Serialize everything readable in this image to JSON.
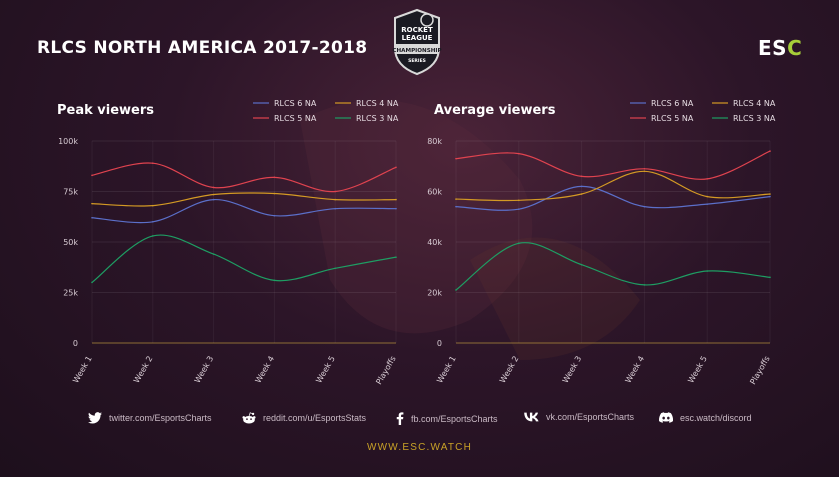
{
  "header": {
    "title": "RLCS NORTH AMERICA 2017-2018",
    "badge": {
      "line1": "ROCKET",
      "line2": "LEAGUE",
      "line3": "CHAMPIONSHIP",
      "line4": "SERIES"
    },
    "brand_main": "ES",
    "brand_accent": "C"
  },
  "footer": {
    "twitter": "twitter.com/EsportsCharts",
    "reddit": "reddit.com/u/EsportsStats",
    "facebook": "fb.com/EsportsCharts",
    "vk": "vk.com/EsportsCharts",
    "discord": "esc.watch/discord",
    "website": "WWW.ESC.WATCH"
  },
  "colors": {
    "RLCS 6 NA": "#5b6fc9",
    "RLCS 4 NA": "#d49a24",
    "RLCS 5 NA": "#e0434f",
    "RLCS 3 NA": "#1e9e63",
    "accent": "#c9a227",
    "brand_green": "#a6ce39"
  },
  "chart_data": [
    {
      "type": "line",
      "title": "Peak viewers",
      "categories": [
        "Week 1",
        "Week 2",
        "Week 3",
        "Week 4",
        "Week 5",
        "Playoffs"
      ],
      "ylim": [
        0,
        100000
      ],
      "yticks": [
        0,
        25000,
        50000,
        75000,
        100000
      ],
      "ytick_labels": [
        "0",
        "25k",
        "50k",
        "75k",
        "100k"
      ],
      "grid": true,
      "legend": "top-right",
      "series": [
        {
          "name": "RLCS 6 NA",
          "values": [
            62000,
            60000,
            71000,
            63000,
            66500,
            66500
          ]
        },
        {
          "name": "RLCS 4 NA",
          "values": [
            69000,
            68000,
            73500,
            74000,
            71000,
            71000
          ]
        },
        {
          "name": "RLCS 5 NA",
          "values": [
            83000,
            89000,
            77000,
            82000,
            75000,
            87000
          ]
        },
        {
          "name": "RLCS 3 NA",
          "values": [
            30000,
            53000,
            44000,
            31000,
            37000,
            42500
          ]
        }
      ]
    },
    {
      "type": "line",
      "title": "Average viewers",
      "categories": [
        "Week 1",
        "Week 2",
        "Week 3",
        "Week 4",
        "Week 5",
        "Playoffs"
      ],
      "ylim": [
        0,
        80000
      ],
      "yticks": [
        0,
        20000,
        40000,
        60000,
        80000
      ],
      "ytick_labels": [
        "0",
        "20k",
        "40k",
        "60k",
        "80k"
      ],
      "grid": true,
      "legend": "top-right",
      "series": [
        {
          "name": "RLCS 6 NA",
          "values": [
            54000,
            53000,
            62000,
            54000,
            55000,
            58000
          ]
        },
        {
          "name": "RLCS 4 NA",
          "values": [
            57000,
            56500,
            59000,
            68000,
            58000,
            59000
          ]
        },
        {
          "name": "RLCS 5 NA",
          "values": [
            73000,
            75000,
            66000,
            69000,
            65000,
            76000
          ]
        },
        {
          "name": "RLCS 3 NA",
          "values": [
            21000,
            39500,
            31000,
            23000,
            28500,
            26000
          ]
        }
      ]
    }
  ]
}
